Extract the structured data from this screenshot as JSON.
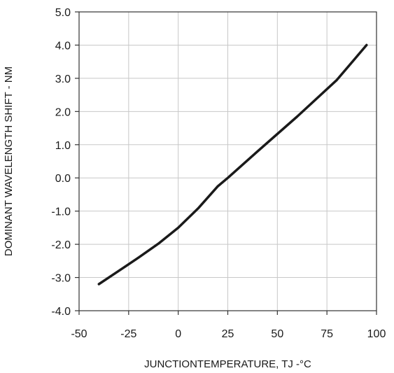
{
  "chart_data": {
    "type": "line",
    "title": "",
    "xlabel": "JUNCTIONTEMPERATURE, TJ -°C",
    "ylabel": "DOMINANT WAVELENGTH SHIFT - NM",
    "xlim": [
      -50,
      100
    ],
    "ylim": [
      -4.0,
      5.0
    ],
    "x_ticks": [
      -50,
      -25,
      0,
      25,
      50,
      75,
      100
    ],
    "y_ticks": [
      -4.0,
      -3.0,
      -2.0,
      -1.0,
      0.0,
      1.0,
      2.0,
      3.0,
      4.0,
      5.0
    ],
    "x_tick_labels": [
      "-50",
      "-25",
      "0",
      "25",
      "50",
      "75",
      "100"
    ],
    "y_tick_labels": [
      "-4.0",
      "-3.0",
      "-2.0",
      "-1.0",
      "0.0",
      "1.0",
      "2.0",
      "3.0",
      "4.0",
      "5.0"
    ],
    "grid": true,
    "series": [
      {
        "x": [
          -40,
          -30,
          -20,
          -10,
          0,
          10,
          20,
          25,
          40,
          60,
          80,
          95
        ],
        "y": [
          -3.2,
          -2.8,
          -2.4,
          -1.98,
          -1.5,
          -0.92,
          -0.25,
          0.0,
          0.8,
          1.85,
          2.95,
          4.0
        ],
        "color": "#1a1a1a"
      }
    ]
  }
}
